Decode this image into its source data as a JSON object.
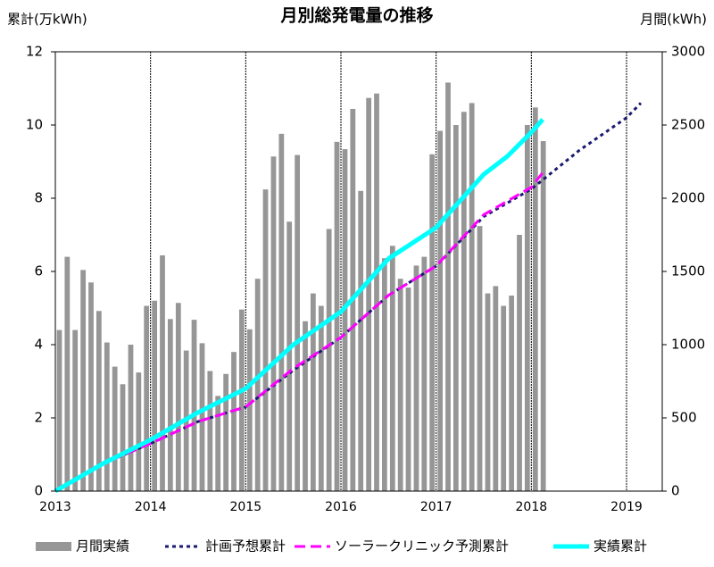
{
  "chart_data": {
    "type": "combo",
    "title": "月別総発電量の推移",
    "ylabel": "累計(万kWh)",
    "y2label": "月間(kWh)",
    "xlim": [
      2013,
      2019.375
    ],
    "xticks": [
      2013,
      2014,
      2015,
      2016,
      2017,
      2018,
      2019
    ],
    "ylim": [
      0,
      12
    ],
    "yticks": [
      0,
      2,
      4,
      6,
      8,
      10,
      12
    ],
    "y2lim": [
      0,
      3000
    ],
    "y2ticks": [
      0,
      500,
      1000,
      1500,
      2000,
      2500,
      3000
    ],
    "grid": "x",
    "legend": "bottom",
    "series": [
      {
        "name": "月間実績",
        "type": "bar",
        "axis": "y2",
        "color": "#969696",
        "x": [
          2013.042,
          2013.125,
          2013.208,
          2013.292,
          2013.375,
          2013.458,
          2013.542,
          2013.625,
          2013.708,
          2013.792,
          2013.875,
          2013.958,
          2014.042,
          2014.125,
          2014.208,
          2014.292,
          2014.375,
          2014.458,
          2014.542,
          2014.625,
          2014.708,
          2014.792,
          2014.875,
          2014.958,
          2015.042,
          2015.125,
          2015.208,
          2015.292,
          2015.375,
          2015.458,
          2015.542,
          2015.625,
          2015.708,
          2015.792,
          2015.875,
          2015.958,
          2016.042,
          2016.125,
          2016.208,
          2016.292,
          2016.375,
          2016.458,
          2016.542,
          2016.625,
          2016.708,
          2016.792,
          2016.875,
          2016.958,
          2017.042,
          2017.125,
          2017.208,
          2017.292,
          2017.375,
          2017.458,
          2017.542,
          2017.625,
          2017.708,
          2017.792,
          2017.875,
          2017.958,
          2018.042,
          2018.125
        ],
        "values": [
          1100,
          1600,
          1100,
          1510,
          1425,
          1230,
          1015,
          850,
          730,
          1000,
          810,
          1265,
          1300,
          1610,
          1175,
          1285,
          960,
          1170,
          1010,
          820,
          650,
          800,
          950,
          1240,
          1105,
          1450,
          2060,
          2285,
          2440,
          1840,
          2295,
          1160,
          1350,
          1265,
          1790,
          2385,
          2335,
          2610,
          2050,
          2685,
          2715,
          1590,
          1675,
          1450,
          1390,
          1540,
          1600,
          2300,
          2460,
          2790,
          2500,
          2590,
          2650,
          1810,
          1350,
          1400,
          1265,
          1335,
          1750,
          2500,
          2620,
          2390
        ]
      },
      {
        "name": "計画予想累計",
        "type": "line",
        "axis": "y",
        "color": "#1a1a70",
        "dash": "4 4",
        "width": 3,
        "x": [
          2013,
          2013.5,
          2014,
          2014.5,
          2015,
          2015.5,
          2016,
          2016.5,
          2017,
          2017.5,
          2018,
          2018.5,
          2019,
          2019.15
        ],
        "values": [
          0,
          0.75,
          1.3,
          1.9,
          2.3,
          3.3,
          4.2,
          5.35,
          6.15,
          7.5,
          8.25,
          9.3,
          10.2,
          10.6
        ]
      },
      {
        "name": "ソーラークリニック予測累計",
        "type": "line",
        "axis": "y",
        "color": "#ff00ff",
        "dash": "12 6",
        "width": 3,
        "x": [
          2013,
          2013.5,
          2014,
          2014.5,
          2015,
          2015.5,
          2016,
          2016.5,
          2017,
          2017.5,
          2018,
          2018.12
        ],
        "values": [
          0,
          0.75,
          1.3,
          1.9,
          2.3,
          3.35,
          4.2,
          5.35,
          6.15,
          7.55,
          8.3,
          8.7
        ]
      },
      {
        "name": "実績累計",
        "type": "line",
        "axis": "y",
        "color": "#00ffff",
        "dash": "",
        "width": 5,
        "x": [
          2013,
          2013.5,
          2014,
          2014.5,
          2015,
          2015.25,
          2015.5,
          2015.75,
          2016,
          2016.5,
          2017,
          2017.5,
          2017.75,
          2018,
          2018.12
        ],
        "values": [
          0,
          0.75,
          1.4,
          2.15,
          2.8,
          3.4,
          4.0,
          4.45,
          4.9,
          6.35,
          7.2,
          8.65,
          9.15,
          9.8,
          10.15
        ]
      }
    ]
  }
}
